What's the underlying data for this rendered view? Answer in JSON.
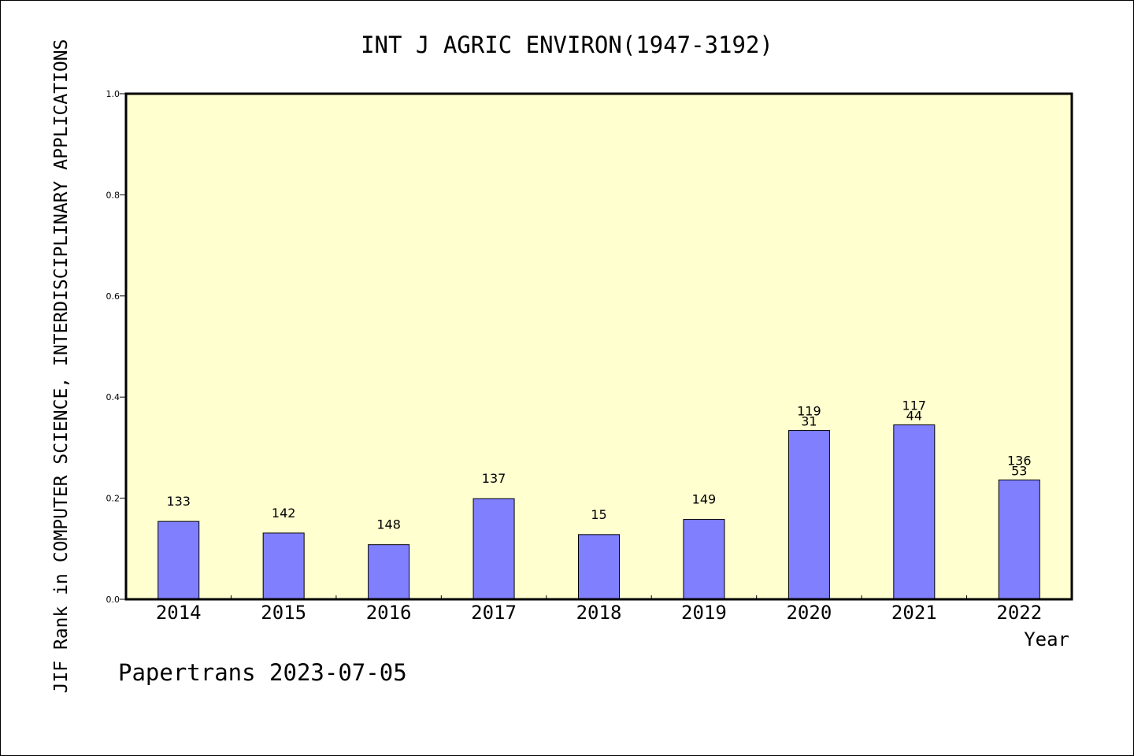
{
  "chart_data": {
    "type": "bar",
    "title": "INT J AGRIC ENVIRON(1947-3192)",
    "xlabel": "Year",
    "ylabel": "JIF Rank in COMPUTER SCIENCE, INTERDISCIPLINARY APPLICATIONS",
    "footer": "Papertrans 2023-07-05",
    "ylim": [
      0,
      1.0
    ],
    "yticks": [
      "0.0",
      "0.2",
      "0.4",
      "0.6",
      "0.8",
      "1.0"
    ],
    "grid": false,
    "categories": [
      "2014",
      "2015",
      "2016",
      "2017",
      "2018",
      "2019",
      "2020",
      "2021",
      "2022"
    ],
    "values": [
      0.154,
      0.131,
      0.108,
      0.199,
      0.128,
      0.158,
      0.334,
      0.345,
      0.236
    ],
    "labels_total": [
      "133",
      "142",
      "148",
      "137",
      "15",
      "149",
      "119",
      "117",
      "136"
    ],
    "labels_rank": [
      "",
      "",
      "",
      "",
      "",
      "",
      "31",
      "44",
      "53"
    ],
    "colors": {
      "bar": "#8080ff",
      "plot_bg": "#ffffd0",
      "axis": "#000000"
    }
  }
}
